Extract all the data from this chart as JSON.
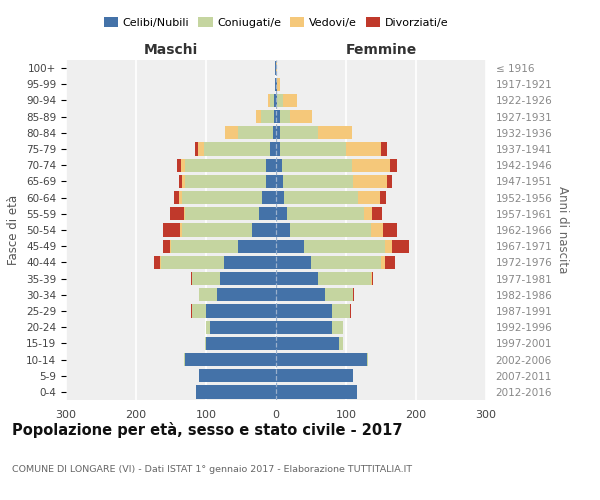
{
  "age_groups": [
    "0-4",
    "5-9",
    "10-14",
    "15-19",
    "20-24",
    "25-29",
    "30-34",
    "35-39",
    "40-44",
    "45-49",
    "50-54",
    "55-59",
    "60-64",
    "65-69",
    "70-74",
    "75-79",
    "80-84",
    "85-89",
    "90-94",
    "95-99",
    "100+"
  ],
  "birth_years": [
    "2012-2016",
    "2007-2011",
    "2002-2006",
    "1997-2001",
    "1992-1996",
    "1987-1991",
    "1982-1986",
    "1977-1981",
    "1972-1976",
    "1967-1971",
    "1962-1966",
    "1957-1961",
    "1952-1956",
    "1947-1951",
    "1942-1946",
    "1937-1941",
    "1932-1936",
    "1927-1931",
    "1922-1926",
    "1917-1921",
    "≤ 1916"
  ],
  "maschi": {
    "celibi": [
      115,
      110,
      130,
      100,
      95,
      100,
      85,
      80,
      75,
      55,
      35,
      25,
      20,
      15,
      15,
      8,
      5,
      3,
      3,
      1,
      1
    ],
    "coniugati": [
      0,
      0,
      2,
      2,
      5,
      20,
      25,
      40,
      90,
      95,
      100,
      105,
      115,
      115,
      115,
      95,
      50,
      18,
      6,
      1,
      0
    ],
    "vedovi": [
      0,
      0,
      0,
      0,
      0,
      0,
      0,
      0,
      1,
      2,
      2,
      2,
      3,
      4,
      6,
      8,
      18,
      8,
      2,
      0,
      0
    ],
    "divorziati": [
      0,
      0,
      0,
      0,
      0,
      2,
      0,
      2,
      8,
      10,
      25,
      20,
      8,
      5,
      5,
      5,
      0,
      0,
      0,
      0,
      0
    ]
  },
  "femmine": {
    "nubili": [
      115,
      110,
      130,
      90,
      80,
      80,
      70,
      60,
      50,
      40,
      20,
      15,
      12,
      10,
      8,
      5,
      5,
      5,
      2,
      1,
      0
    ],
    "coniugate": [
      0,
      0,
      2,
      5,
      15,
      25,
      40,
      75,
      100,
      115,
      115,
      110,
      105,
      100,
      100,
      95,
      55,
      15,
      8,
      1,
      0
    ],
    "vedove": [
      0,
      0,
      0,
      0,
      0,
      0,
      0,
      2,
      5,
      10,
      18,
      12,
      32,
      48,
      55,
      50,
      48,
      32,
      20,
      3,
      1
    ],
    "divorziate": [
      0,
      0,
      0,
      0,
      0,
      2,
      2,
      2,
      15,
      25,
      20,
      15,
      8,
      8,
      10,
      8,
      0,
      0,
      0,
      0,
      0
    ]
  },
  "colors": {
    "celibi": "#4472a8",
    "coniugati": "#c5d5a0",
    "vedovi": "#f5c87a",
    "divorziati": "#c0392b"
  },
  "legend_labels": [
    "Celibi/Nubili",
    "Coniugati/e",
    "Vedovi/e",
    "Divorziati/e"
  ],
  "title": "Popolazione per età, sesso e stato civile - 2017",
  "subtitle": "COMUNE DI LONGARE (VI) - Dati ISTAT 1° gennaio 2017 - Elaborazione TUTTITALIA.IT",
  "header_left": "Maschi",
  "header_right": "Femmine",
  "ylabel_left": "Fasce di età",
  "ylabel_right": "Anni di nascita",
  "xlim": 300,
  "bg_color": "#efefef"
}
